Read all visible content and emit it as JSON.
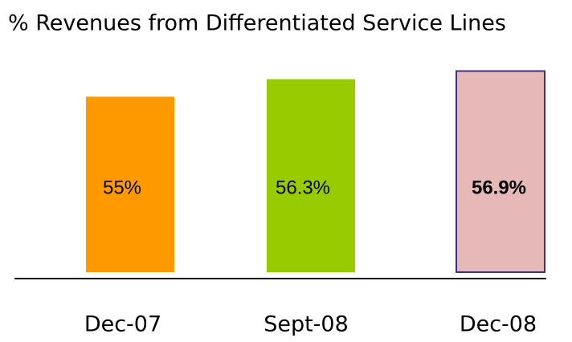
{
  "chart_data": {
    "type": "bar",
    "title": "% Revenues from Differentiated Service Lines",
    "categories": [
      "Dec-07",
      "Sept-08",
      "Dec-08"
    ],
    "values": [
      55,
      56.3,
      56.9
    ],
    "value_labels": [
      "55%",
      "56.3%",
      "56.9%"
    ],
    "colors": [
      "#ff9900",
      "#99cc00",
      "#e6b8b7"
    ],
    "edge_colors": [
      null,
      null,
      "#3f3080"
    ],
    "bold_labels": [
      false,
      false,
      true
    ],
    "ylim": [
      42,
      58
    ]
  }
}
